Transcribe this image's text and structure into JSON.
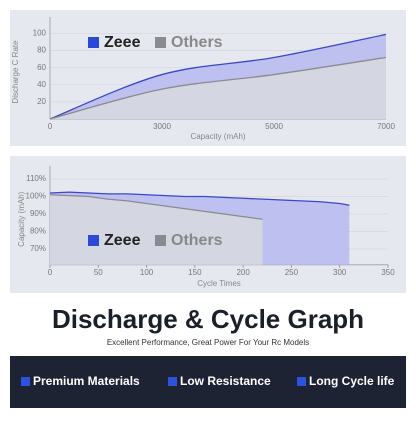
{
  "chart_data": [
    {
      "type": "line",
      "y_label": "Discharge C Rate",
      "x_label": "Capacity (mAh)",
      "categories": [
        "0",
        "3000",
        "5000",
        "7000"
      ],
      "series": [
        {
          "name": "Zeee",
          "color": "#3b46c8",
          "values": [
            0,
            52,
            72,
            99
          ]
        },
        {
          "name": "Others",
          "color": "#8a8a90",
          "values": [
            0,
            35,
            52,
            72
          ]
        }
      ],
      "ylim": [
        0,
        110
      ],
      "yticks": [
        20,
        40,
        60,
        80,
        100
      ],
      "grid": true
    },
    {
      "type": "line",
      "y_label": "Capacity (mAh)",
      "x_label": "Cycle Times",
      "x": [
        0,
        20,
        40,
        60,
        80,
        100,
        120,
        140,
        160,
        180,
        200,
        220,
        240,
        260,
        280,
        300,
        310
      ],
      "series": [
        {
          "name": "Zeee",
          "color": "#3b46c8",
          "values": [
            102,
            102.5,
            102,
            101.5,
            101.5,
            101,
            100.5,
            100,
            100,
            99.5,
            99,
            98.5,
            98,
            97.5,
            97,
            96,
            95
          ]
        },
        {
          "name": "Others",
          "color": "#8a8a90",
          "values": [
            101,
            100.5,
            100,
            98.5,
            97.5,
            96,
            94.5,
            93,
            91.5,
            90,
            88.5,
            87,
            null,
            null,
            null,
            null,
            null
          ]
        }
      ],
      "xlim": [
        0,
        350
      ],
      "xticks": [
        0,
        50,
        100,
        150,
        200,
        250,
        300,
        350
      ],
      "ylim": [
        61,
        113
      ],
      "yticks": [
        {
          "value": 70,
          "label": "70%"
        },
        {
          "value": 80,
          "label": "80%"
        },
        {
          "value": 90,
          "label": "90%"
        },
        {
          "value": 100,
          "label": "100%"
        },
        {
          "value": 110,
          "label": "110%"
        }
      ],
      "grid": true
    }
  ],
  "headline": "Discharge & Cycle Graph",
  "subtitle": "Excellent Performance, Great Power For Your Rc Models",
  "features": [
    "Premium Materials",
    "Low Resistance",
    "Long Cycle life"
  ]
}
